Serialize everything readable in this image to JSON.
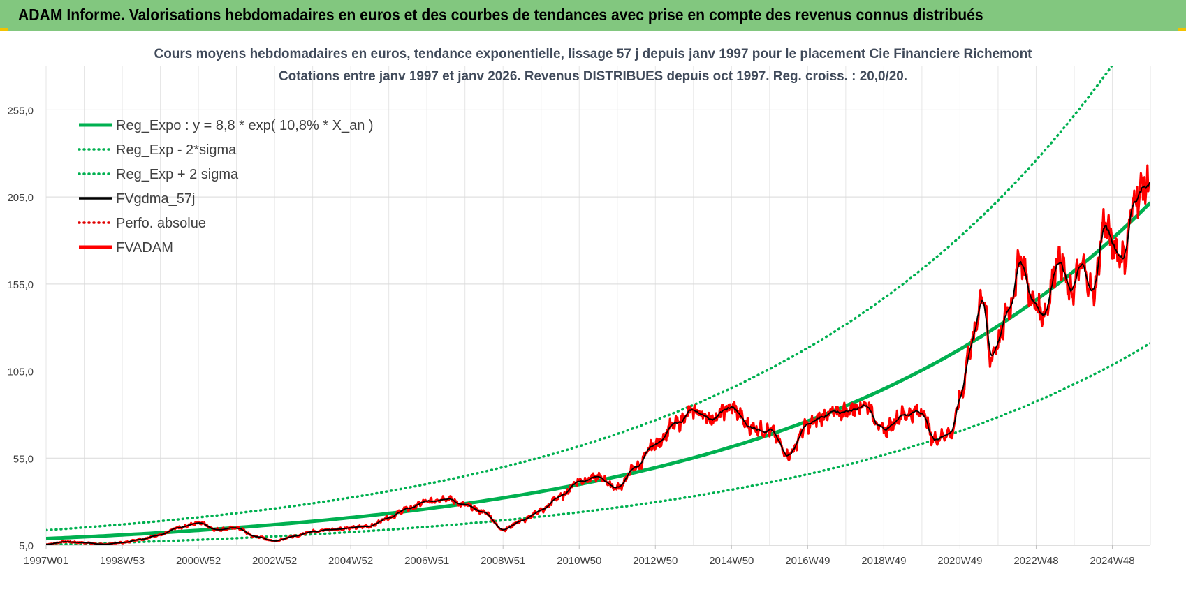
{
  "banner": {
    "title": "ADAM Informe. Valorisations hebdomadaires en euros et des courbes de tendances avec prise en compte des revenus connus distribués"
  },
  "chart_data": {
    "type": "line",
    "title": "Cours moyens hebdomadaires en euros, tendance exponentielle, lissage 57 j depuis janv 1997  pour le placement Cie Financiere Richemont",
    "subtitle": "Cotations entre janv 1997 et janv 2026. Revenus DISTRIBUES depuis oct 1997.  Reg. croiss. : 20,0/20.",
    "xlabel": "",
    "ylabel": "",
    "x_tick_labels": [
      "1997W01",
      "1998W53",
      "2000W52",
      "2002W52",
      "2004W52",
      "2006W51",
      "2008W51",
      "2010W50",
      "2012W50",
      "2014W50",
      "2016W49",
      "2018W49",
      "2020W49",
      "2022W48",
      "2024W48"
    ],
    "y_tick_labels": [
      "5,0",
      "55,0",
      "105,0",
      "155,0",
      "205,0",
      "255,0"
    ],
    "ylim": [
      5,
      280
    ],
    "xlim": [
      1997.0,
      2026.0
    ],
    "grid": true,
    "legend_position": "top-left",
    "series": [
      {
        "name": "Reg_Expo : y = 8,8 * exp( 10,8% *  X_an )",
        "color": "#00b050",
        "style": "solid-thick",
        "formula": {
          "a": 8.8,
          "rate": 0.108,
          "x0": 1997.0
        }
      },
      {
        "name": "Reg_Exp - 2*sigma",
        "color": "#00b050",
        "style": "dotted",
        "formula": {
          "a": 8.8,
          "rate": 0.108,
          "x0": 1997.0,
          "factor": 0.6
        }
      },
      {
        "name": "Reg_Exp + 2 sigma",
        "color": "#00b050",
        "style": "dotted",
        "formula": {
          "a": 8.8,
          "rate": 0.108,
          "x0": 1997.0,
          "factor": 1.55
        }
      },
      {
        "name": "FVgdma_57j",
        "color": "#000000",
        "style": "solid"
      },
      {
        "name": "Perfo. absolue",
        "color": "#e00000",
        "style": "dotted"
      },
      {
        "name": "FVADAM",
        "color": "#ff0000",
        "style": "solid-thick",
        "x": [
          1997.0,
          1997.5,
          1998.0,
          1998.5,
          1999.0,
          1999.5,
          2000.0,
          2000.5,
          2001.0,
          2001.5,
          2002.0,
          2002.5,
          2003.0,
          2003.5,
          2004.0,
          2004.5,
          2005.0,
          2005.5,
          2006.0,
          2006.5,
          2007.0,
          2007.5,
          2008.0,
          2008.5,
          2009.0,
          2009.5,
          2010.0,
          2010.5,
          2011.0,
          2011.5,
          2012.0,
          2012.5,
          2013.0,
          2013.5,
          2014.0,
          2014.5,
          2015.0,
          2015.5,
          2016.0,
          2016.5,
          2017.0,
          2017.5,
          2018.0,
          2018.5,
          2019.0,
          2019.5,
          2020.0,
          2020.3,
          2020.8,
          2021.0,
          2021.3,
          2021.6,
          2021.8,
          2022.0,
          2022.3,
          2022.6,
          2022.9,
          2023.2,
          2023.6,
          2023.9,
          2024.2,
          2024.5,
          2024.8,
          2025.0,
          2025.3,
          2025.6,
          2025.9
        ],
        "values": [
          5.5,
          7,
          6.5,
          5.5,
          6.5,
          8.5,
          11,
          15,
          18,
          14,
          15,
          10,
          7.5,
          10,
          13,
          14,
          15,
          16,
          21,
          26,
          30,
          32,
          28,
          24,
          14,
          19,
          25,
          33,
          42,
          44,
          38,
          50,
          63,
          74,
          82,
          78,
          84,
          73,
          71,
          57,
          74,
          80,
          82,
          86,
          71,
          80,
          82,
          66,
          70,
          90,
          120,
          150,
          112,
          122,
          142,
          170,
          145,
          138,
          170,
          150,
          165,
          150,
          190,
          178,
          170,
          205,
          212
        ]
      }
    ]
  }
}
